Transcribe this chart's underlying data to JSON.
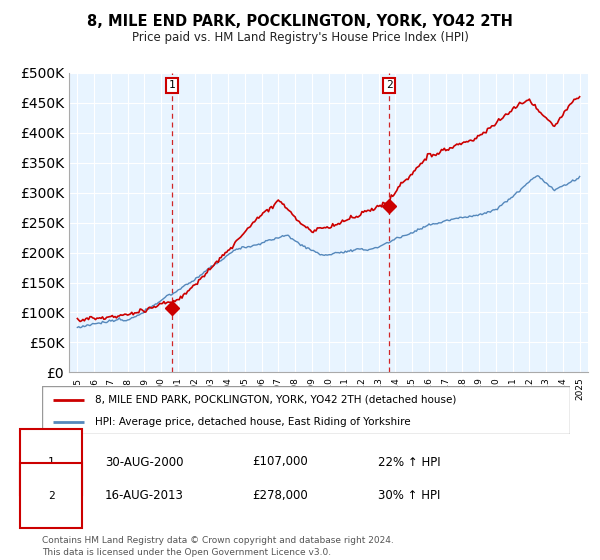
{
  "title": "8, MILE END PARK, POCKLINGTON, YORK, YO42 2TH",
  "subtitle": "Price paid vs. HM Land Registry's House Price Index (HPI)",
  "legend_label_red": "8, MILE END PARK, POCKLINGTON, YORK, YO42 2TH (detached house)",
  "legend_label_blue": "HPI: Average price, detached house, East Riding of Yorkshire",
  "annotation1_date": "30-AUG-2000",
  "annotation1_price": "£107,000",
  "annotation1_hpi": "22% ↑ HPI",
  "annotation2_date": "16-AUG-2013",
  "annotation2_price": "£278,000",
  "annotation2_hpi": "30% ↑ HPI",
  "footer": "Contains HM Land Registry data © Crown copyright and database right 2024.\nThis data is licensed under the Open Government Licence v3.0.",
  "red_color": "#cc0000",
  "blue_color": "#5588bb",
  "fill_color": "#ddeeff",
  "annotation_box_color": "#cc0000",
  "ylim": [
    0,
    500000
  ],
  "yticks": [
    0,
    50000,
    100000,
    150000,
    200000,
    250000,
    300000,
    350000,
    400000,
    450000,
    500000
  ],
  "sale1_year": 2000.667,
  "sale1_price": 107000,
  "sale2_year": 2013.625,
  "sale2_price": 278000,
  "bg_color": "#e8f4ff"
}
